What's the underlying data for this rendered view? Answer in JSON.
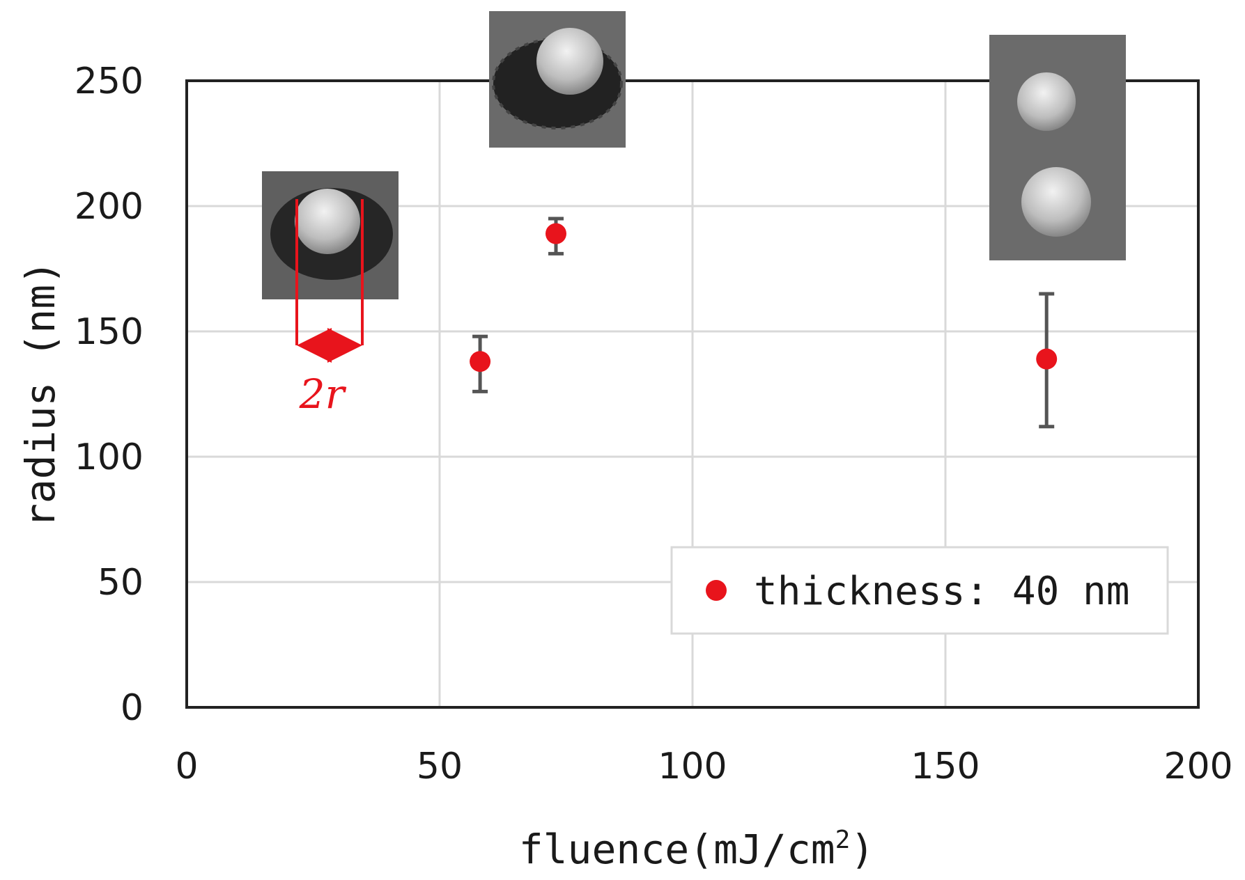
{
  "chart_data": {
    "type": "scatter",
    "xlabel": "fluence(mJ/cm",
    "xlabel_sup": "2",
    "xlabel_end": ")",
    "ylabel": "radius (nm)",
    "xlim": [
      0,
      200
    ],
    "ylim": [
      0,
      250
    ],
    "x_ticks": [
      "0",
      "50",
      "100",
      "150",
      "200"
    ],
    "y_ticks": [
      "0",
      "50",
      "100",
      "150",
      "200",
      "250"
    ],
    "grid": true,
    "legend_position": "bottom-right",
    "series": [
      {
        "name": "thickness: 40 nm",
        "color": "#e8141c",
        "points": [
          {
            "x": 58,
            "y": 138,
            "err_low": 126,
            "err_high": 148
          },
          {
            "x": 73,
            "y": 189,
            "err_low": 181,
            "err_high": 195
          },
          {
            "x": 170,
            "y": 139,
            "err_low": 112,
            "err_high": 165
          }
        ]
      }
    ],
    "annotation": {
      "label": "2r",
      "color": "#e8141c"
    },
    "insets": [
      "sem-inset-left",
      "sem-inset-top-center",
      "sem-inset-top-right"
    ]
  }
}
